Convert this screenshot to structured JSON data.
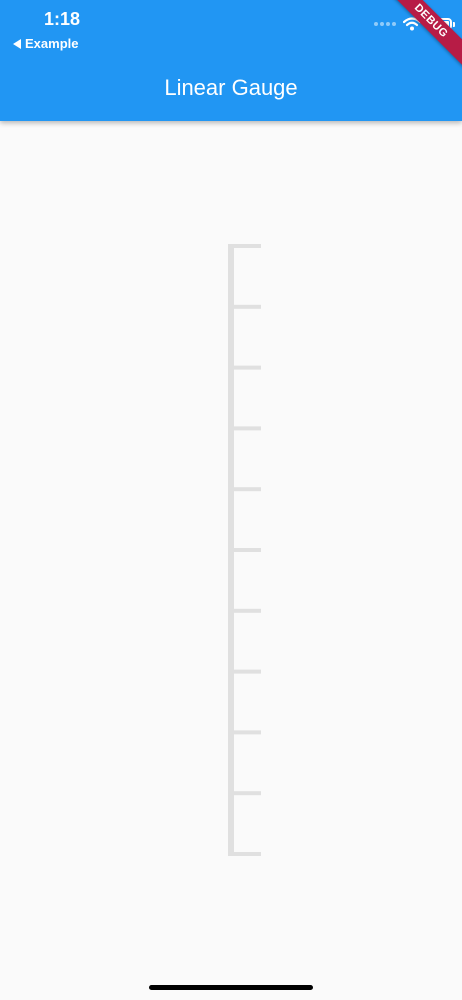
{
  "status_bar": {
    "time": "1:18",
    "back_label": "Example",
    "icons": [
      "signal-dots-icon",
      "wifi-icon",
      "battery-icon"
    ]
  },
  "app_bar": {
    "title": "Linear Gauge",
    "color": "#2196f3"
  },
  "debug_banner": {
    "label": "DEBUG",
    "color": "#b71c46"
  },
  "gauge": {
    "type": "linear-vertical",
    "major_tick_count": 11,
    "color": "#e0e0e0"
  }
}
